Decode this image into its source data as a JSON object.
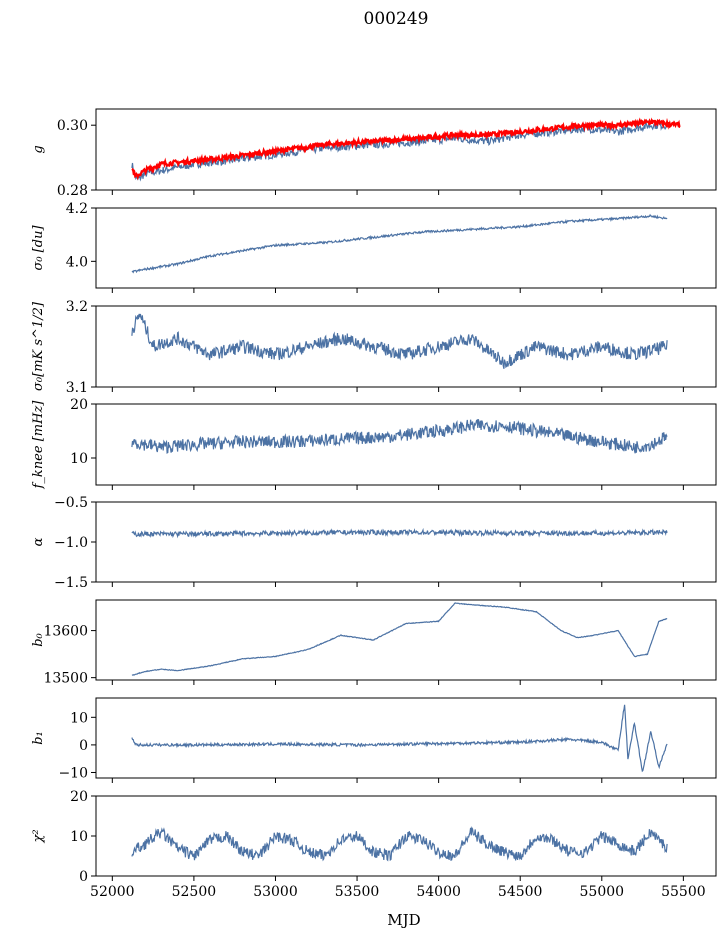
{
  "figure": {
    "title": "000249",
    "xlabel": "MJD",
    "colors": {
      "data": "#4c72a4",
      "model": "#ff0000",
      "axis": "#000000"
    }
  },
  "chart_data": [
    {
      "type": "line",
      "id": "g",
      "ylabel": "g",
      "ylim": [
        0.28,
        0.305
      ],
      "yticks": [
        "0.28",
        "0.30"
      ],
      "ytick_values": [
        0.28,
        0.3
      ],
      "xlim": [
        51900,
        55700
      ],
      "series": [
        {
          "style": "data",
          "x": [
            52120,
            52150,
            52200,
            52300,
            52500,
            52700,
            53000,
            53300,
            53600,
            53900,
            54100,
            54300,
            54500,
            54700,
            54900,
            55100,
            55300,
            55400
          ],
          "values": [
            0.288,
            0.283,
            0.285,
            0.286,
            0.288,
            0.289,
            0.291,
            0.293,
            0.294,
            0.295,
            0.296,
            0.295,
            0.297,
            0.298,
            0.299,
            0.298,
            0.3,
            0.3
          ]
        },
        {
          "style": "model",
          "x": [
            52120,
            52140,
            52200,
            52300,
            52500,
            52700,
            53000,
            53300,
            53600,
            53900,
            54100,
            54300,
            54500,
            54700,
            54900,
            55100,
            55300,
            55480
          ],
          "values": [
            0.287,
            0.284,
            0.286,
            0.288,
            0.289,
            0.29,
            0.292,
            0.294,
            0.295,
            0.296,
            0.297,
            0.297,
            0.298,
            0.299,
            0.3,
            0.3,
            0.301,
            0.3
          ]
        }
      ]
    },
    {
      "type": "line",
      "id": "sigma0_du",
      "ylabel": "σ₀ [du]",
      "ylim": [
        3.9,
        4.2
      ],
      "yticks": [
        "4.0",
        "4.2"
      ],
      "ytick_values": [
        4.0,
        4.2
      ],
      "xlim": [
        51900,
        55700
      ],
      "series": [
        {
          "style": "data",
          "x": [
            52120,
            52200,
            52400,
            52600,
            52800,
            53000,
            53300,
            53600,
            53900,
            54200,
            54500,
            54800,
            55100,
            55300,
            55400
          ],
          "values": [
            3.96,
            3.97,
            3.99,
            4.02,
            4.04,
            4.06,
            4.07,
            4.09,
            4.11,
            4.12,
            4.13,
            4.15,
            4.16,
            4.17,
            4.16
          ]
        }
      ]
    },
    {
      "type": "line",
      "id": "sigma0_mk",
      "ylabel": "σ₀[mK s^1/2]",
      "ylim": [
        3.1,
        3.2
      ],
      "yticks": [
        "3.1",
        "3.2"
      ],
      "ytick_values": [
        3.1,
        3.2
      ],
      "xlim": [
        51900,
        55700
      ],
      "series": [
        {
          "style": "data",
          "x": [
            52120,
            52170,
            52250,
            52400,
            52600,
            52800,
            53000,
            53200,
            53400,
            53600,
            53800,
            54000,
            54200,
            54400,
            54600,
            54800,
            55000,
            55200,
            55400
          ],
          "values": [
            3.17,
            3.19,
            3.15,
            3.16,
            3.14,
            3.15,
            3.14,
            3.15,
            3.16,
            3.15,
            3.14,
            3.15,
            3.16,
            3.13,
            3.15,
            3.14,
            3.15,
            3.14,
            3.15
          ]
        }
      ]
    },
    {
      "type": "line",
      "id": "fknee",
      "ylabel": "f_knee [mHz]",
      "ylim": [
        5,
        20
      ],
      "yticks": [
        "10",
        "20"
      ],
      "ytick_values": [
        10,
        20
      ],
      "xlim": [
        51900,
        55700
      ],
      "series": [
        {
          "style": "data",
          "x": [
            52120,
            52300,
            52500,
            52800,
            53100,
            53400,
            53700,
            54000,
            54200,
            54400,
            54600,
            54800,
            55000,
            55200,
            55300,
            55400
          ],
          "values": [
            13,
            12,
            12.5,
            13,
            13,
            13.5,
            14,
            15,
            16,
            16,
            15,
            14,
            13,
            12,
            12.5,
            14
          ]
        }
      ]
    },
    {
      "type": "line",
      "id": "alpha",
      "ylabel": "α",
      "ylim": [
        -1.5,
        -0.5
      ],
      "yticks": [
        "−1.5",
        "−1.0",
        "−0.5"
      ],
      "ytick_values": [
        -1.5,
        -1.0,
        -0.5
      ],
      "xlim": [
        51900,
        55700
      ],
      "series": [
        {
          "style": "data",
          "x": [
            52120,
            52500,
            53000,
            53500,
            54000,
            54500,
            55000,
            55400
          ],
          "values": [
            -0.9,
            -0.9,
            -0.89,
            -0.88,
            -0.88,
            -0.89,
            -0.89,
            -0.88
          ]
        }
      ]
    },
    {
      "type": "line",
      "id": "b0",
      "ylabel": "b₀",
      "ylim": [
        13495,
        13665
      ],
      "yticks": [
        "13500",
        "13600"
      ],
      "ytick_values": [
        13500,
        13600
      ],
      "xlim": [
        51900,
        55700
      ],
      "series": [
        {
          "style": "data",
          "x": [
            52120,
            52200,
            52300,
            52400,
            52600,
            52800,
            53000,
            53200,
            53400,
            53600,
            53800,
            54000,
            54100,
            54200,
            54400,
            54600,
            54750,
            54850,
            54950,
            55100,
            55200,
            55280,
            55350,
            55400
          ],
          "values": [
            13505,
            13513,
            13518,
            13515,
            13525,
            13540,
            13545,
            13560,
            13590,
            13580,
            13615,
            13620,
            13658,
            13655,
            13650,
            13640,
            13600,
            13585,
            13590,
            13600,
            13545,
            13550,
            13620,
            13625
          ]
        }
      ]
    },
    {
      "type": "line",
      "id": "b1",
      "ylabel": "b₁",
      "ylim": [
        -12,
        17
      ],
      "yticks": [
        "−10",
        "0",
        "10"
      ],
      "ytick_values": [
        -10,
        0,
        10
      ],
      "xlim": [
        51900,
        55700
      ],
      "series": [
        {
          "style": "data",
          "x": [
            52120,
            52140,
            52500,
            53000,
            53500,
            54000,
            54500,
            54800,
            55000,
            55100,
            55140,
            55160,
            55200,
            55250,
            55300,
            55350,
            55400
          ],
          "values": [
            3,
            0,
            0,
            0.3,
            0,
            0.5,
            1,
            2,
            1,
            -2,
            15,
            -5,
            8,
            -10,
            5,
            -8,
            0
          ]
        }
      ]
    },
    {
      "type": "line",
      "id": "chi2",
      "ylabel": "χ²",
      "ylim": [
        0,
        20
      ],
      "yticks": [
        "0",
        "10",
        "20"
      ],
      "ytick_values": [
        0,
        10,
        20
      ],
      "xlim": [
        51900,
        55700
      ],
      "xticks": [
        "52000",
        "52500",
        "53000",
        "53500",
        "54000",
        "54500",
        "55000",
        "55500"
      ],
      "xtick_values": [
        52000,
        52500,
        53000,
        53500,
        54000,
        54500,
        55000,
        55500
      ],
      "series": [
        {
          "style": "data",
          "x": [
            52120,
            52200,
            52300,
            52400,
            52500,
            52600,
            52700,
            52800,
            52900,
            53000,
            53100,
            53200,
            53300,
            53400,
            53500,
            53600,
            53700,
            53800,
            53900,
            54000,
            54100,
            54200,
            54300,
            54400,
            54500,
            54600,
            54700,
            54800,
            54900,
            55000,
            55100,
            55200,
            55300,
            55400
          ],
          "values": [
            6,
            8,
            11,
            7,
            5,
            9,
            10,
            6,
            5,
            10,
            9,
            6,
            5,
            9,
            10,
            6,
            5,
            10,
            9,
            6,
            5,
            11,
            8,
            6,
            5,
            10,
            9,
            6,
            6,
            10,
            8,
            6,
            11,
            7
          ]
        }
      ]
    }
  ]
}
